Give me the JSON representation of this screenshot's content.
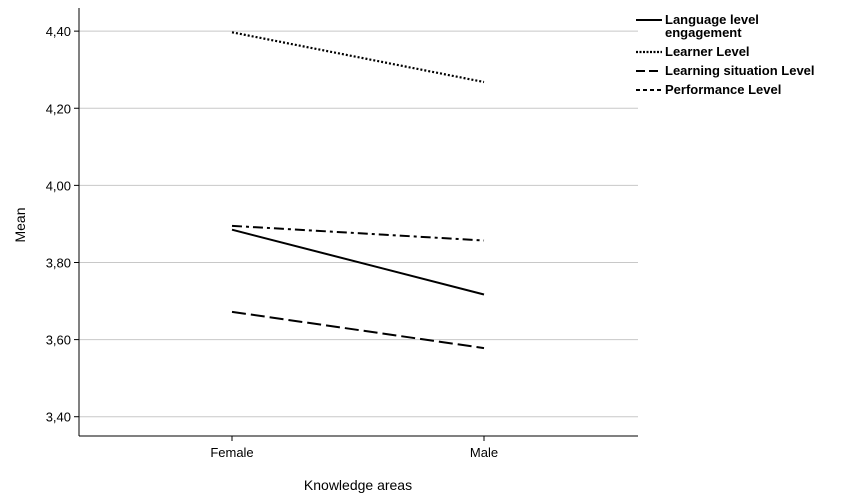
{
  "chart_data": {
    "type": "line",
    "xlabel": "Knowledge areas",
    "ylabel": "Mean",
    "categories": [
      "Female",
      "Male"
    ],
    "ylim": [
      3.35,
      4.46
    ],
    "yticks": [
      3.4,
      3.6,
      3.8,
      4.0,
      4.2,
      4.4
    ],
    "ytick_labels": [
      "3,40",
      "3,60",
      "3,80",
      "4,00",
      "4,20",
      "4,40"
    ],
    "grid": true,
    "legend_position": "top-right",
    "series": [
      {
        "name": "Language level engagement",
        "name_lines": [
          "Language level",
          "engagement"
        ],
        "values": [
          3.885,
          3.717
        ],
        "style": "solid"
      },
      {
        "name": "Learner Level",
        "name_lines": [
          "Learner Level"
        ],
        "values": [
          4.397,
          4.268
        ],
        "style": "dotted"
      },
      {
        "name": "Learning situation Level",
        "name_lines": [
          "Learning situation Level"
        ],
        "values": [
          3.672,
          3.578
        ],
        "style": "long-dash"
      },
      {
        "name": "Performance Level",
        "name_lines": [
          "Performance Level"
        ],
        "values": [
          3.895,
          3.857
        ],
        "style": "dash-dot"
      }
    ],
    "colors": {
      "line": "#000000",
      "grid": "#c8c8c8",
      "axis": "#000000"
    }
  }
}
